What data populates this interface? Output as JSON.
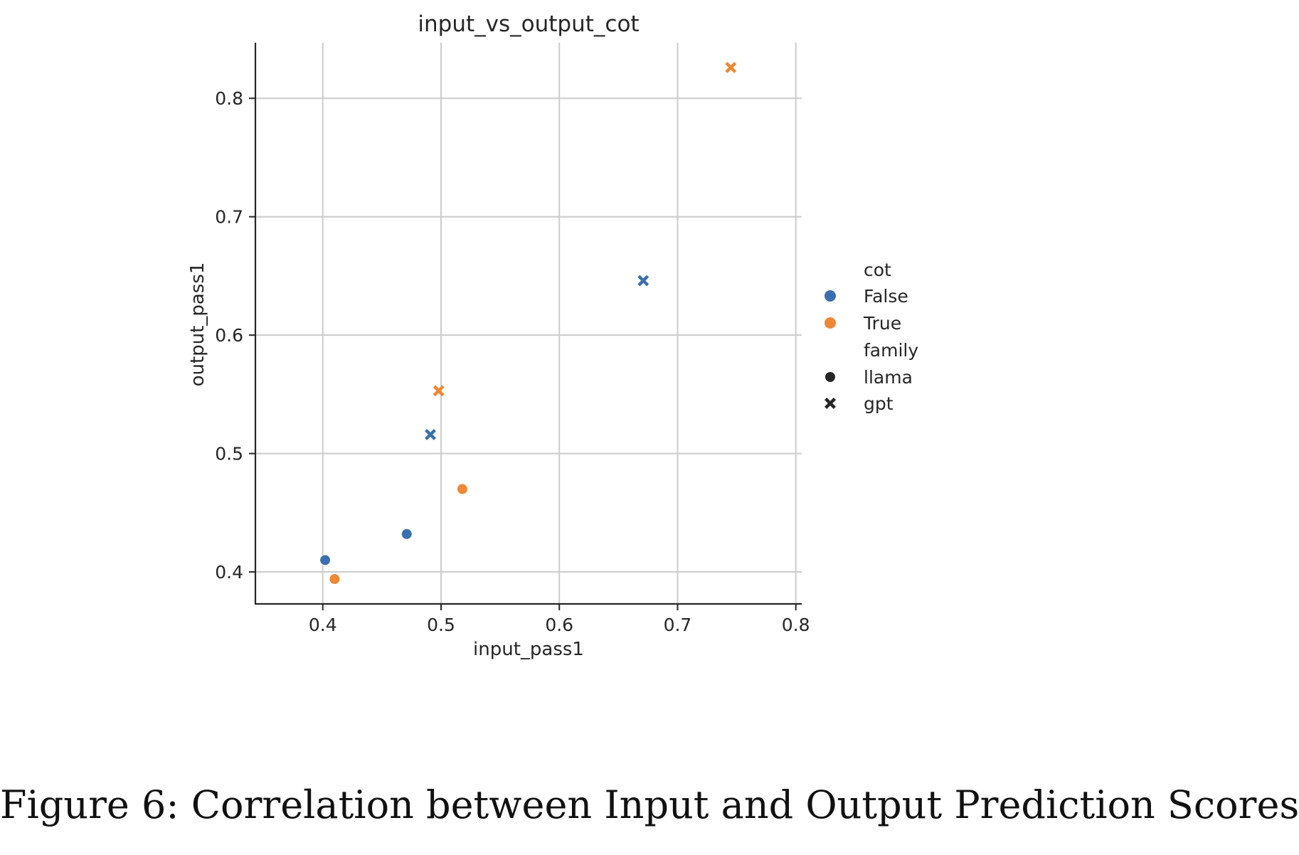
{
  "chart_data": {
    "type": "scatter",
    "title": "input_vs_output_cot",
    "xlabel": "input_pass1",
    "ylabel": "output_pass1",
    "xlim": [
      0.343,
      0.805
    ],
    "ylim": [
      0.373,
      0.847
    ],
    "xticks": [
      "0.4",
      "0.5",
      "0.6",
      "0.7",
      "0.8"
    ],
    "yticks": [
      "0.4",
      "0.5",
      "0.6",
      "0.7",
      "0.8"
    ],
    "xtick_values": [
      0.4,
      0.5,
      0.6,
      0.7,
      0.8
    ],
    "ytick_values": [
      0.4,
      0.5,
      0.6,
      0.7,
      0.8
    ],
    "grid": true,
    "legend_position": "right",
    "points": [
      {
        "x": 0.402,
        "y": 0.41,
        "cot": "False",
        "family": "llama"
      },
      {
        "x": 0.471,
        "y": 0.432,
        "cot": "False",
        "family": "llama"
      },
      {
        "x": 0.41,
        "y": 0.394,
        "cot": "True",
        "family": "llama"
      },
      {
        "x": 0.518,
        "y": 0.47,
        "cot": "True",
        "family": "llama"
      },
      {
        "x": 0.491,
        "y": 0.516,
        "cot": "False",
        "family": "gpt"
      },
      {
        "x": 0.671,
        "y": 0.646,
        "cot": "False",
        "family": "gpt"
      },
      {
        "x": 0.498,
        "y": 0.553,
        "cot": "True",
        "family": "gpt"
      },
      {
        "x": 0.745,
        "y": 0.826,
        "cot": "True",
        "family": "gpt"
      }
    ],
    "legend": {
      "hue_title": "cot",
      "hue_entries": [
        {
          "label": "False",
          "color": "#3a70ad"
        },
        {
          "label": "True",
          "color": "#ee8836"
        }
      ],
      "style_title": "family",
      "style_entries": [
        {
          "label": "llama",
          "marker": "circle"
        },
        {
          "label": "gpt",
          "marker": "x"
        }
      ]
    }
  },
  "caption": "Figure 6: Correlation between Input and Output Prediction Scores"
}
